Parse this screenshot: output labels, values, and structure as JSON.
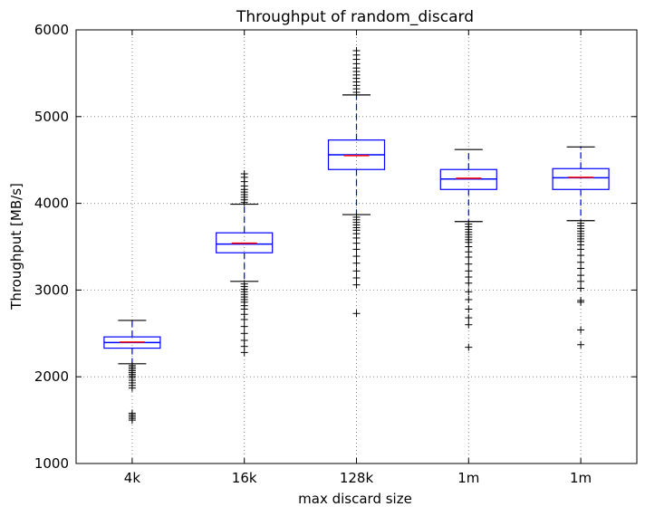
{
  "chart_data": {
    "type": "box",
    "title": "Throughput of random_discard",
    "xlabel": "max discard size",
    "ylabel": "Throughput [MB/s]",
    "ylim": [
      1000,
      6000
    ],
    "yticks": [
      1000,
      2000,
      3000,
      4000,
      5000,
      6000
    ],
    "grid": true,
    "categories": [
      "4k",
      "16k",
      "128k",
      "1m",
      "1m"
    ],
    "boxes": [
      {
        "whisker_low": 2150,
        "q1": 2330,
        "median": 2400,
        "mean": 2395,
        "q3": 2460,
        "whisker_high": 2650,
        "outliers": [
          2130,
          2110,
          2090,
          2070,
          2050,
          2030,
          2010,
          1990,
          1960,
          1930,
          1900,
          1870,
          1580,
          1560,
          1540,
          1520,
          1500
        ]
      },
      {
        "whisker_low": 3100,
        "q1": 3430,
        "median": 3540,
        "mean": 3530,
        "q3": 3660,
        "whisker_high": 3990,
        "outliers": [
          4010,
          4040,
          4070,
          4100,
          4130,
          4160,
          4200,
          4250,
          4300,
          4340,
          3070,
          3040,
          3010,
          2980,
          2950,
          2920,
          2890,
          2860,
          2820,
          2780,
          2720,
          2660,
          2580,
          2500,
          2420,
          2350,
          2280
        ]
      },
      {
        "whisker_low": 3870,
        "q1": 4390,
        "median": 4550,
        "mean": 4560,
        "q3": 4730,
        "whisker_high": 5250,
        "outliers": [
          5280,
          5320,
          5360,
          5400,
          5440,
          5480,
          5520,
          5560,
          5610,
          5660,
          5710,
          5760,
          3840,
          3810,
          3780,
          3750,
          3720,
          3690,
          3650,
          3600,
          3540,
          3470,
          3390,
          3310,
          3220,
          3140,
          3060,
          2730
        ]
      },
      {
        "whisker_low": 3790,
        "q1": 4160,
        "median": 4290,
        "mean": 4280,
        "q3": 4390,
        "whisker_high": 4620,
        "outliers": [
          3760,
          3730,
          3700,
          3670,
          3640,
          3610,
          3580,
          3550,
          3500,
          3440,
          3380,
          3300,
          3220,
          3150,
          3080,
          2980,
          2890,
          2780,
          2680,
          2600,
          2340
        ]
      },
      {
        "whisker_low": 3800,
        "q1": 4160,
        "median": 4300,
        "mean": 4295,
        "q3": 4400,
        "whisker_high": 4650,
        "outliers": [
          3770,
          3740,
          3710,
          3680,
          3650,
          3620,
          3590,
          3560,
          3520,
          3470,
          3400,
          3320,
          3250,
          3170,
          3100,
          3020,
          2880,
          2860,
          2540,
          2370
        ]
      }
    ],
    "colors": {
      "box": "#0000ff",
      "median": "#ff0000",
      "whisker_cap": "#000000",
      "outlier": "#000000",
      "grid": "#888888"
    }
  }
}
